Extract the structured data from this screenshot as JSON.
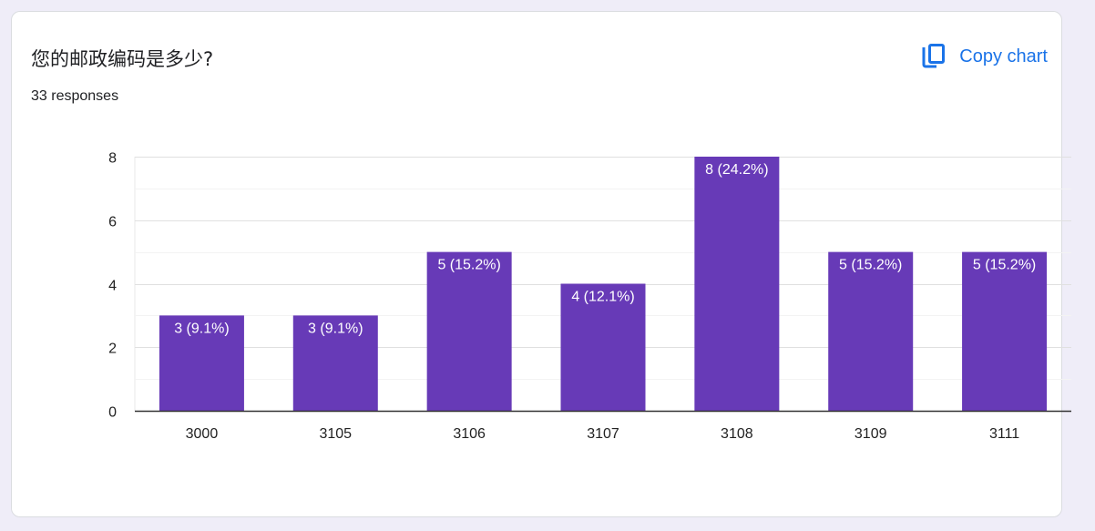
{
  "question": {
    "title": "您的邮政编码是多少?",
    "responses": "33 responses"
  },
  "actions": {
    "copy_chart_label": "Copy chart",
    "copy_icon": "copy-icon"
  },
  "colors": {
    "bar": "#673ab7",
    "accent": "#1a73e8",
    "page_background": "#efedf8"
  },
  "chart_data": {
    "type": "bar",
    "categories": [
      "3000",
      "3105",
      "3106",
      "3107",
      "3108",
      "3109",
      "3111"
    ],
    "values": [
      3,
      3,
      5,
      4,
      8,
      5,
      5
    ],
    "data_labels": [
      "3 (9.1%)",
      "3 (9.1%)",
      "5 (15.2%)",
      "4 (12.1%)",
      "8 (24.2%)",
      "5 (15.2%)",
      "5 (15.2%)"
    ],
    "ylim": [
      0,
      8
    ],
    "yticks": [
      0,
      2,
      4,
      6,
      8
    ],
    "grid": true,
    "legend": "none"
  }
}
